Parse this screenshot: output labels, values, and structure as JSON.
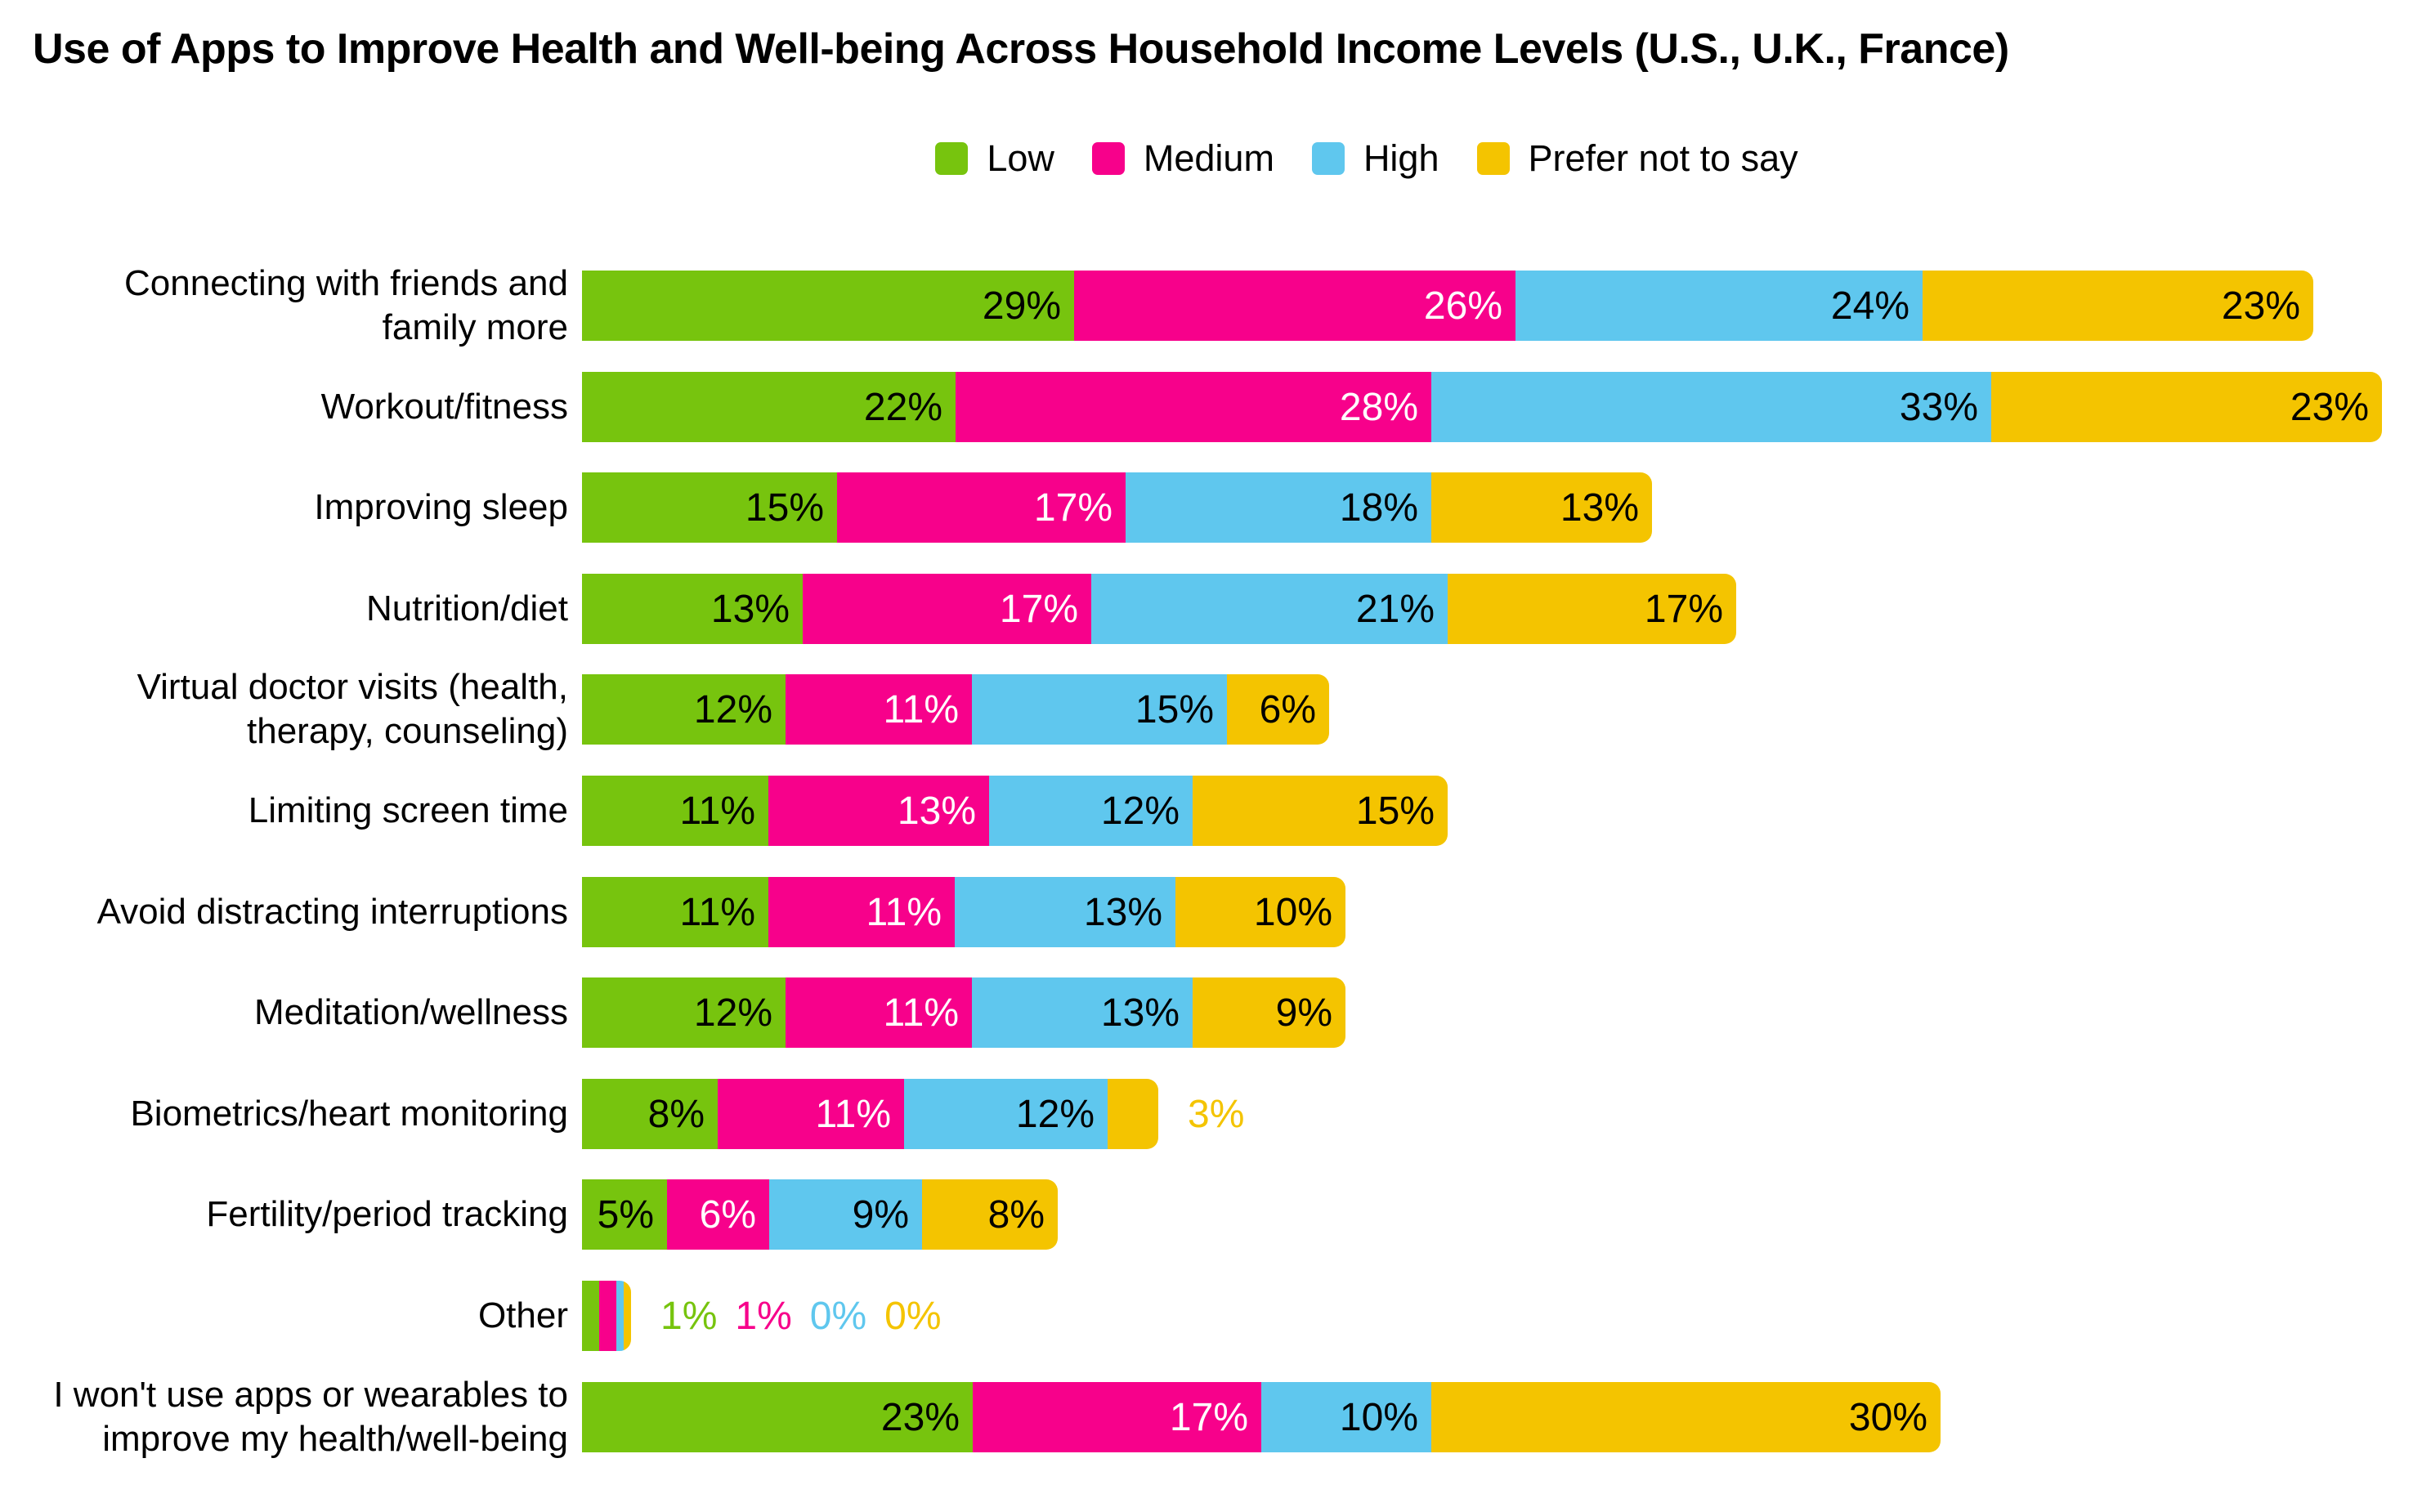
{
  "title": "Use of Apps to Improve Health and Well-being Across Household Income Levels (U.S., U.K., France)",
  "legend": {
    "items": [
      {
        "label": "Low",
        "color": "#77C40E"
      },
      {
        "label": "Medium",
        "color": "#F7018B"
      },
      {
        "label": "High",
        "color": "#5FC7EE"
      },
      {
        "label": "Prefer not to say",
        "color": "#F4C400"
      }
    ]
  },
  "chart_data": {
    "type": "bar",
    "orientation": "horizontal",
    "stacked": true,
    "value_unit": "%",
    "title": "Use of Apps to Improve Health and Well-being Across Household Income Levels (U.S., U.K., France)",
    "legend_position": "top",
    "grid": false,
    "categories": [
      "Connecting with friends and\nfamily more",
      "Workout/fitness",
      "Improving sleep",
      "Nutrition/diet",
      "Virtual doctor visits (health,\ntherapy, counseling)",
      "Limiting screen time",
      "Avoid distracting interruptions",
      "Meditation/wellness",
      "Biometrics/heart monitoring",
      "Fertility/period tracking",
      "Other",
      "I won't use apps or wearables to\nimprove my health/well-being"
    ],
    "series": [
      {
        "name": "Low",
        "color": "#77C40E",
        "label_text_color": "#000000",
        "values": [
          29,
          22,
          15,
          13,
          12,
          11,
          11,
          12,
          8,
          5,
          1,
          23
        ]
      },
      {
        "name": "Medium",
        "color": "#F7018B",
        "label_text_color": "#ffffff",
        "values": [
          26,
          28,
          17,
          17,
          11,
          13,
          11,
          11,
          11,
          6,
          1,
          17
        ]
      },
      {
        "name": "High",
        "color": "#5FC7EE",
        "label_text_color": "#000000",
        "values": [
          24,
          33,
          18,
          21,
          15,
          12,
          13,
          13,
          12,
          9,
          0,
          10
        ]
      },
      {
        "name": "Prefer not to say",
        "color": "#F4C400",
        "label_text_color": "#000000",
        "values": [
          23,
          23,
          13,
          17,
          6,
          15,
          10,
          9,
          3,
          8,
          0,
          30
        ]
      }
    ]
  }
}
